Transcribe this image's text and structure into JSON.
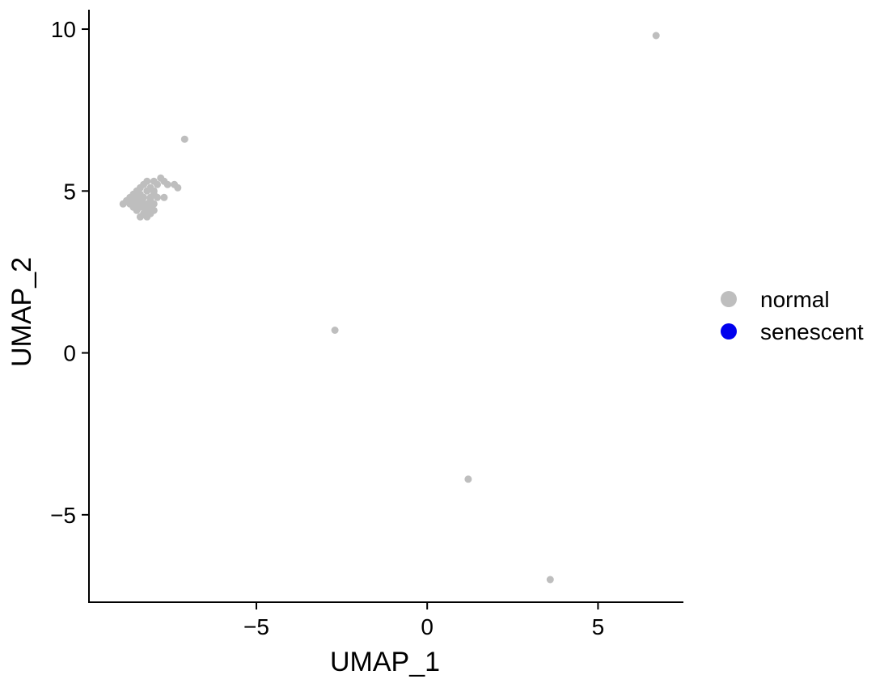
{
  "chart_data": {
    "type": "scatter",
    "xlabel": "UMAP_1",
    "ylabel": "UMAP_2",
    "xlim": [
      -9.9,
      7.5
    ],
    "ylim": [
      -7.7,
      10.6
    ],
    "x_ticks": [
      -5,
      0,
      5
    ],
    "y_ticks": [
      -5,
      0,
      5,
      10
    ],
    "x_tick_labels": [
      "−5",
      "0",
      "5"
    ],
    "y_tick_labels": [
      "−5",
      "0",
      "5",
      "10"
    ],
    "grid": false,
    "legend_position": "right",
    "legend": [
      {
        "name": "normal",
        "color": "#bebebe"
      },
      {
        "name": "senescent",
        "color": "#0000ee"
      }
    ],
    "series": [
      {
        "name": "normal",
        "color": "#bebebe",
        "points": [
          [
            6.7,
            9.8
          ],
          [
            -7.1,
            6.6
          ],
          [
            -2.7,
            0.7
          ],
          [
            1.2,
            -3.9
          ],
          [
            3.6,
            -7.0
          ],
          [
            -8.9,
            4.6
          ],
          [
            -8.8,
            4.7
          ],
          [
            -8.7,
            4.8
          ],
          [
            -8.7,
            4.6
          ],
          [
            -8.6,
            4.9
          ],
          [
            -8.6,
            4.7
          ],
          [
            -8.6,
            4.5
          ],
          [
            -8.5,
            4.8
          ],
          [
            -8.5,
            5.0
          ],
          [
            -8.5,
            4.6
          ],
          [
            -8.5,
            4.4
          ],
          [
            -8.4,
            4.2
          ],
          [
            -8.4,
            4.9
          ],
          [
            -8.4,
            4.7
          ],
          [
            -8.4,
            5.1
          ],
          [
            -8.3,
            4.3
          ],
          [
            -8.3,
            4.5
          ],
          [
            -8.3,
            4.8
          ],
          [
            -8.3,
            5.2
          ],
          [
            -8.2,
            4.2
          ],
          [
            -8.2,
            4.4
          ],
          [
            -8.2,
            4.6
          ],
          [
            -8.2,
            5.0
          ],
          [
            -8.2,
            5.3
          ],
          [
            -8.1,
            4.3
          ],
          [
            -8.1,
            4.5
          ],
          [
            -8.1,
            4.8
          ],
          [
            -8.1,
            5.1
          ],
          [
            -8.0,
            4.4
          ],
          [
            -8.0,
            4.6
          ],
          [
            -8.0,
            5.0
          ],
          [
            -8.0,
            5.3
          ],
          [
            -7.9,
            5.2
          ],
          [
            -7.9,
            4.8
          ],
          [
            -7.8,
            5.4
          ],
          [
            -7.7,
            5.3
          ],
          [
            -7.7,
            4.8
          ],
          [
            -7.6,
            5.2
          ],
          [
            -7.4,
            5.2
          ],
          [
            -7.3,
            5.1
          ],
          [
            -8.0,
            4.9
          ],
          [
            -8.3,
            4.6
          ],
          [
            -8.6,
            4.8
          ],
          [
            -8.4,
            4.5
          ],
          [
            -8.1,
            4.7
          ]
        ]
      },
      {
        "name": "senescent",
        "color": "#0000ee",
        "points": []
      }
    ]
  }
}
